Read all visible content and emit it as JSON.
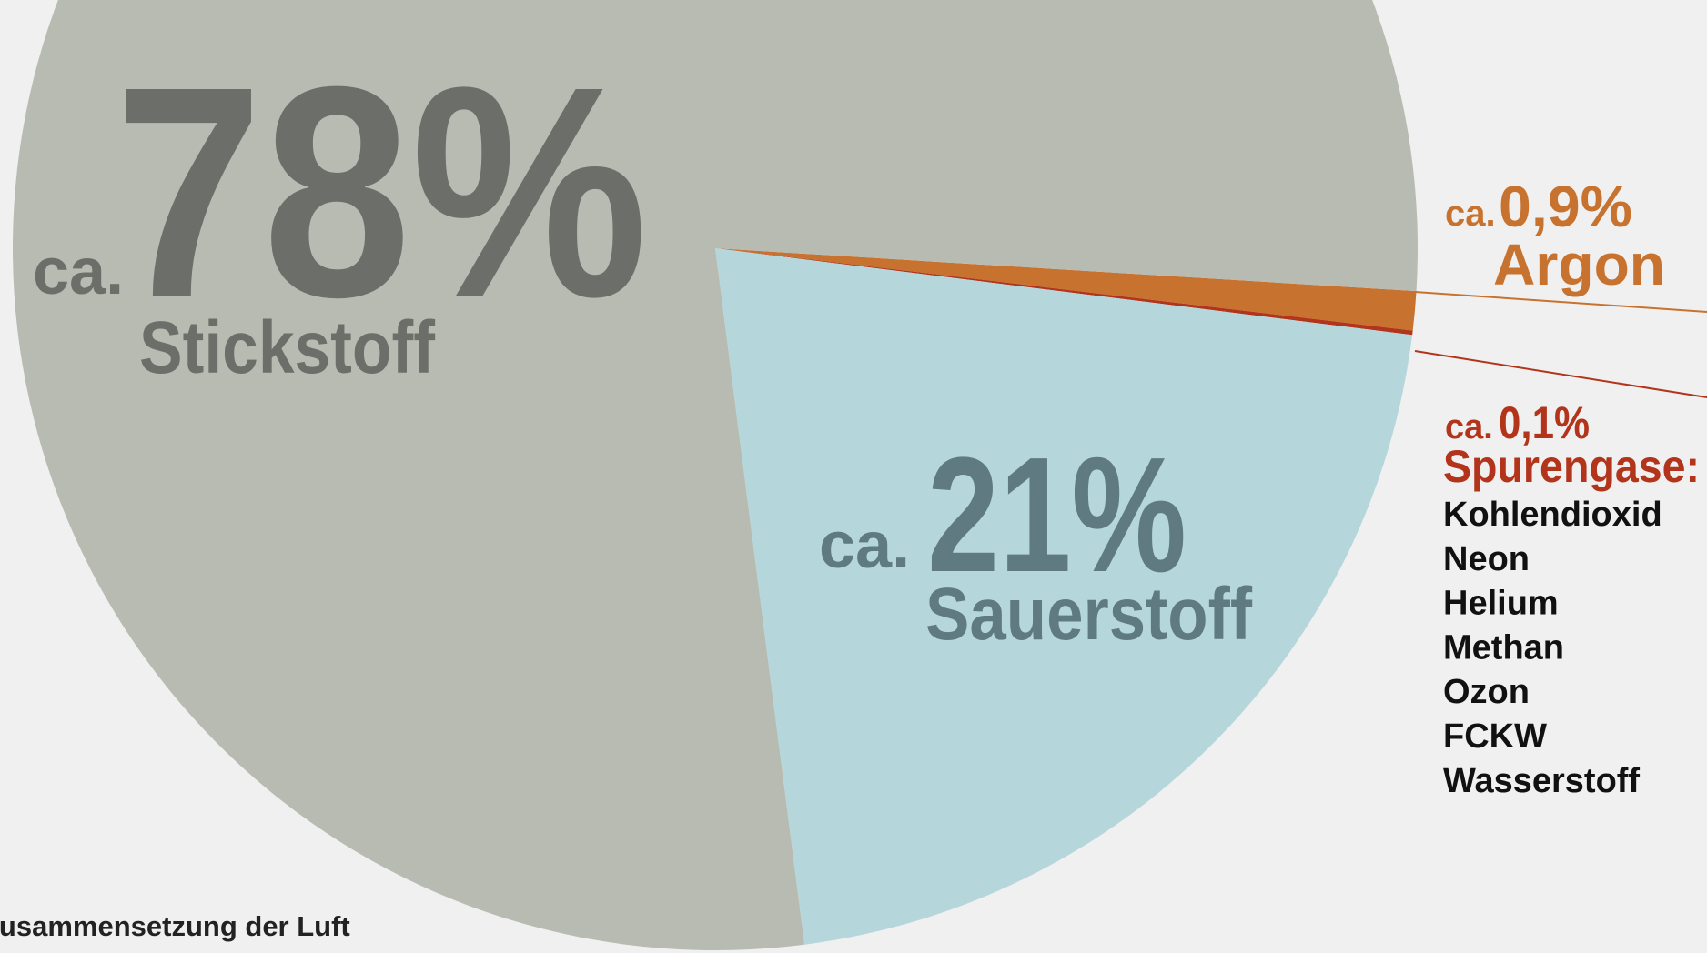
{
  "chart_data": {
    "type": "pie",
    "title": "Zusammensetzung der Luft",
    "value_prefix": "ca.",
    "categories": [
      "Argon",
      "Spurengase:",
      "Sauerstoff",
      "Stickstoff"
    ],
    "values": [
      0.9,
      0.1,
      21,
      78
    ],
    "value_labels": [
      "0,9%",
      "0,1%",
      "21%",
      "78%"
    ],
    "colors": [
      "#c8722f",
      "#b2341a",
      "#b5d7dc",
      "#b8bbb2"
    ],
    "trace_gases": [
      "Kohlendioxid",
      "Neon",
      "Helium",
      "Methan",
      "Ozon",
      "FCKW",
      "Wasserstoff"
    ]
  }
}
